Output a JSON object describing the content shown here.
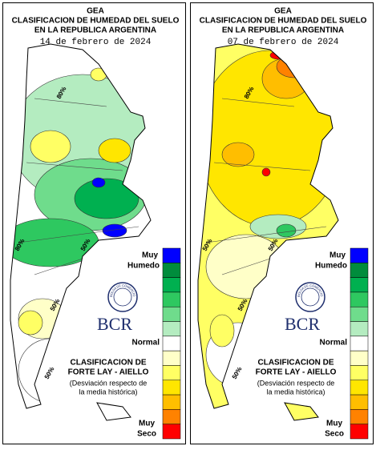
{
  "panels": [
    {
      "header": {
        "org": "GEA",
        "title_line1": "CLASIFICACION DE HUMEDAD DEL SUELO",
        "title_line2": "EN LA REPUBLICA ARGENTINA",
        "date": "14 de febrero de 2024"
      },
      "legend": {
        "top_label": [
          "Muy",
          "Humedo"
        ],
        "middle_label": "Normal",
        "bottom_label": [
          "Muy",
          "Seco"
        ],
        "colors": [
          "#0000ff",
          "#008c3c",
          "#00b050",
          "#2ec860",
          "#6fdc8c",
          "#b4ecc0",
          "#ffffff",
          "#ffffc8",
          "#ffff64",
          "#ffe600",
          "#ffbe00",
          "#ff8200",
          "#ff0000"
        ]
      },
      "logo": {
        "seal_text": "BOLSA DE COMERCIO DE ROSARIO",
        "name": "BCR"
      },
      "method": [
        "CLASIFICACION DE",
        "FORTE LAY - AIELLO",
        "(Desviación respecto de",
        "la media histórica)"
      ],
      "contour_labels": [
        "80%",
        "80%",
        "50%",
        "50%",
        "50%"
      ]
    },
    {
      "header": {
        "org": "GEA",
        "title_line1": "CLASIFICACION DE HUMEDAD DEL SUELO",
        "title_line2": "EN LA REPUBLICA ARGENTINA",
        "date": "07 de febrero de 2024"
      },
      "legend": {
        "top_label": [
          "Muy",
          "Humedo"
        ],
        "middle_label": "Normal",
        "bottom_label": [
          "Muy",
          "Seco"
        ],
        "colors": [
          "#0000ff",
          "#008c3c",
          "#00b050",
          "#2ec860",
          "#6fdc8c",
          "#b4ecc0",
          "#ffffff",
          "#ffffc8",
          "#ffff64",
          "#ffe600",
          "#ffbe00",
          "#ff8200",
          "#ff0000"
        ]
      },
      "logo": {
        "seal_text": "BOLSA DE COMERCIO DE ROSARIO",
        "name": "BCR"
      },
      "method": [
        "CLASIFICACION DE",
        "FORTE LAY - AIELLO",
        "(Desviación respecto de",
        "la media histórica)"
      ],
      "contour_labels": [
        "80%",
        "50%",
        "50%",
        "50%",
        "50%"
      ]
    }
  ]
}
